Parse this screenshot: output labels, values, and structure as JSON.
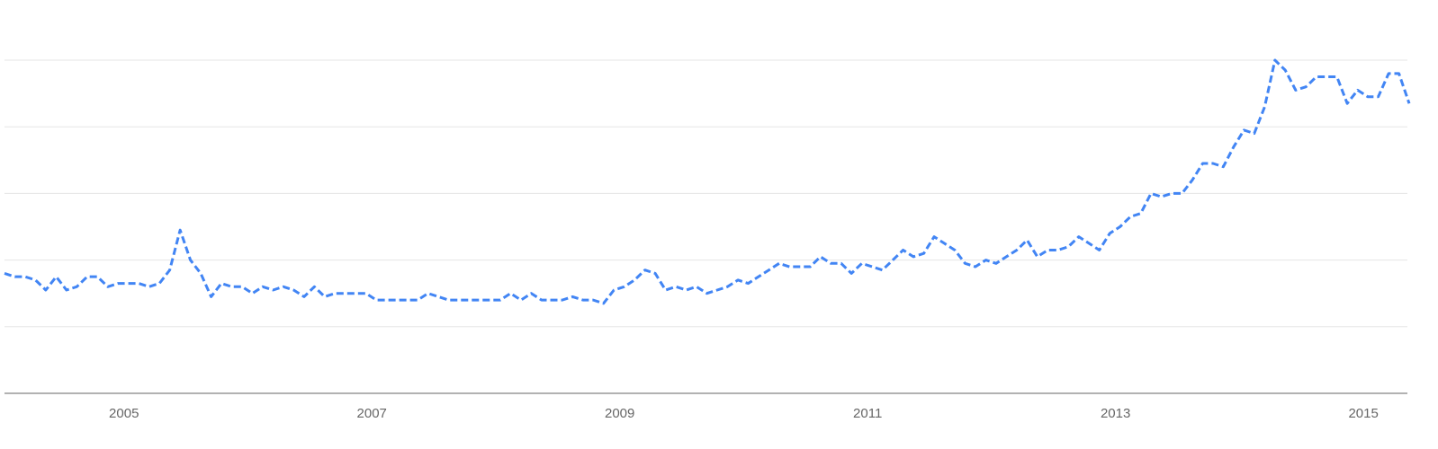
{
  "chart_data": {
    "type": "line",
    "x": [
      2004,
      2004.083,
      2004.167,
      2004.25,
      2004.333,
      2004.417,
      2004.5,
      2004.583,
      2004.667,
      2004.75,
      2004.833,
      2004.917,
      2005,
      2005.083,
      2005.167,
      2005.25,
      2005.333,
      2005.417,
      2005.5,
      2005.583,
      2005.667,
      2005.75,
      2005.833,
      2005.917,
      2006,
      2006.083,
      2006.167,
      2006.25,
      2006.333,
      2006.417,
      2006.5,
      2006.583,
      2006.667,
      2006.75,
      2006.833,
      2006.917,
      2007,
      2007.083,
      2007.167,
      2007.25,
      2007.333,
      2007.417,
      2007.5,
      2007.583,
      2007.667,
      2007.75,
      2007.833,
      2007.917,
      2008,
      2008.083,
      2008.167,
      2008.25,
      2008.333,
      2008.417,
      2008.5,
      2008.583,
      2008.667,
      2008.75,
      2008.833,
      2008.917,
      2009,
      2009.083,
      2009.167,
      2009.25,
      2009.333,
      2009.417,
      2009.5,
      2009.583,
      2009.667,
      2009.75,
      2009.833,
      2009.917,
      2010,
      2010.083,
      2010.167,
      2010.25,
      2010.333,
      2010.417,
      2010.5,
      2010.583,
      2010.667,
      2010.75,
      2010.833,
      2010.917,
      2011,
      2011.083,
      2011.167,
      2011.25,
      2011.333,
      2011.417,
      2011.5,
      2011.583,
      2011.667,
      2011.75,
      2011.833,
      2011.917,
      2012,
      2012.083,
      2012.167,
      2012.25,
      2012.333,
      2012.417,
      2012.5,
      2012.583,
      2012.667,
      2012.75,
      2012.833,
      2012.917,
      2013,
      2013.083,
      2013.167,
      2013.25,
      2013.333,
      2013.417,
      2013.5,
      2013.583,
      2013.667,
      2013.75,
      2013.833,
      2013.917,
      2014,
      2014.083,
      2014.167,
      2014.25,
      2014.333,
      2014.417,
      2014.5,
      2014.583,
      2014.667,
      2014.75,
      2014.833,
      2014.917,
      2015,
      2015.083,
      2015.167,
      2015.25,
      2015.333
    ],
    "series": [
      {
        "color": "#4285f4",
        "values": [
          36,
          35,
          35,
          34,
          31,
          35,
          31,
          32,
          35,
          35,
          32,
          33,
          33,
          33,
          32,
          33,
          37,
          49,
          40,
          36,
          29,
          33,
          32,
          32,
          30,
          32,
          31,
          32,
          31,
          29,
          32,
          29,
          30,
          30,
          30,
          30,
          28,
          28,
          28,
          28,
          28,
          30,
          29,
          28,
          28,
          28,
          28,
          28,
          28,
          30,
          28,
          30,
          28,
          28,
          28,
          29,
          28,
          28,
          27,
          31,
          32,
          34,
          37,
          36,
          31,
          32,
          31,
          32,
          30,
          31,
          32,
          34,
          33,
          35,
          37,
          39,
          38,
          38,
          38,
          41,
          39,
          39,
          36,
          39,
          38,
          37,
          40,
          43,
          41,
          42,
          47,
          45,
          43,
          39,
          38,
          40,
          39,
          41,
          43,
          46,
          41,
          43,
          43,
          44,
          47,
          45,
          43,
          48,
          50,
          53,
          54,
          60,
          59,
          60,
          60,
          64,
          69,
          69,
          68,
          74,
          79,
          78,
          86,
          100,
          97,
          91,
          92,
          95,
          95,
          95,
          87,
          91,
          89,
          89,
          96,
          96,
          87
        ]
      }
    ],
    "xlim": [
      2004,
      2015.333
    ],
    "xticks": [
      2005,
      2007,
      2009,
      2011,
      2013,
      2015
    ],
    "ylim": [
      0,
      100
    ],
    "yticks": [
      20,
      40,
      60,
      80,
      100
    ],
    "grid": true
  }
}
